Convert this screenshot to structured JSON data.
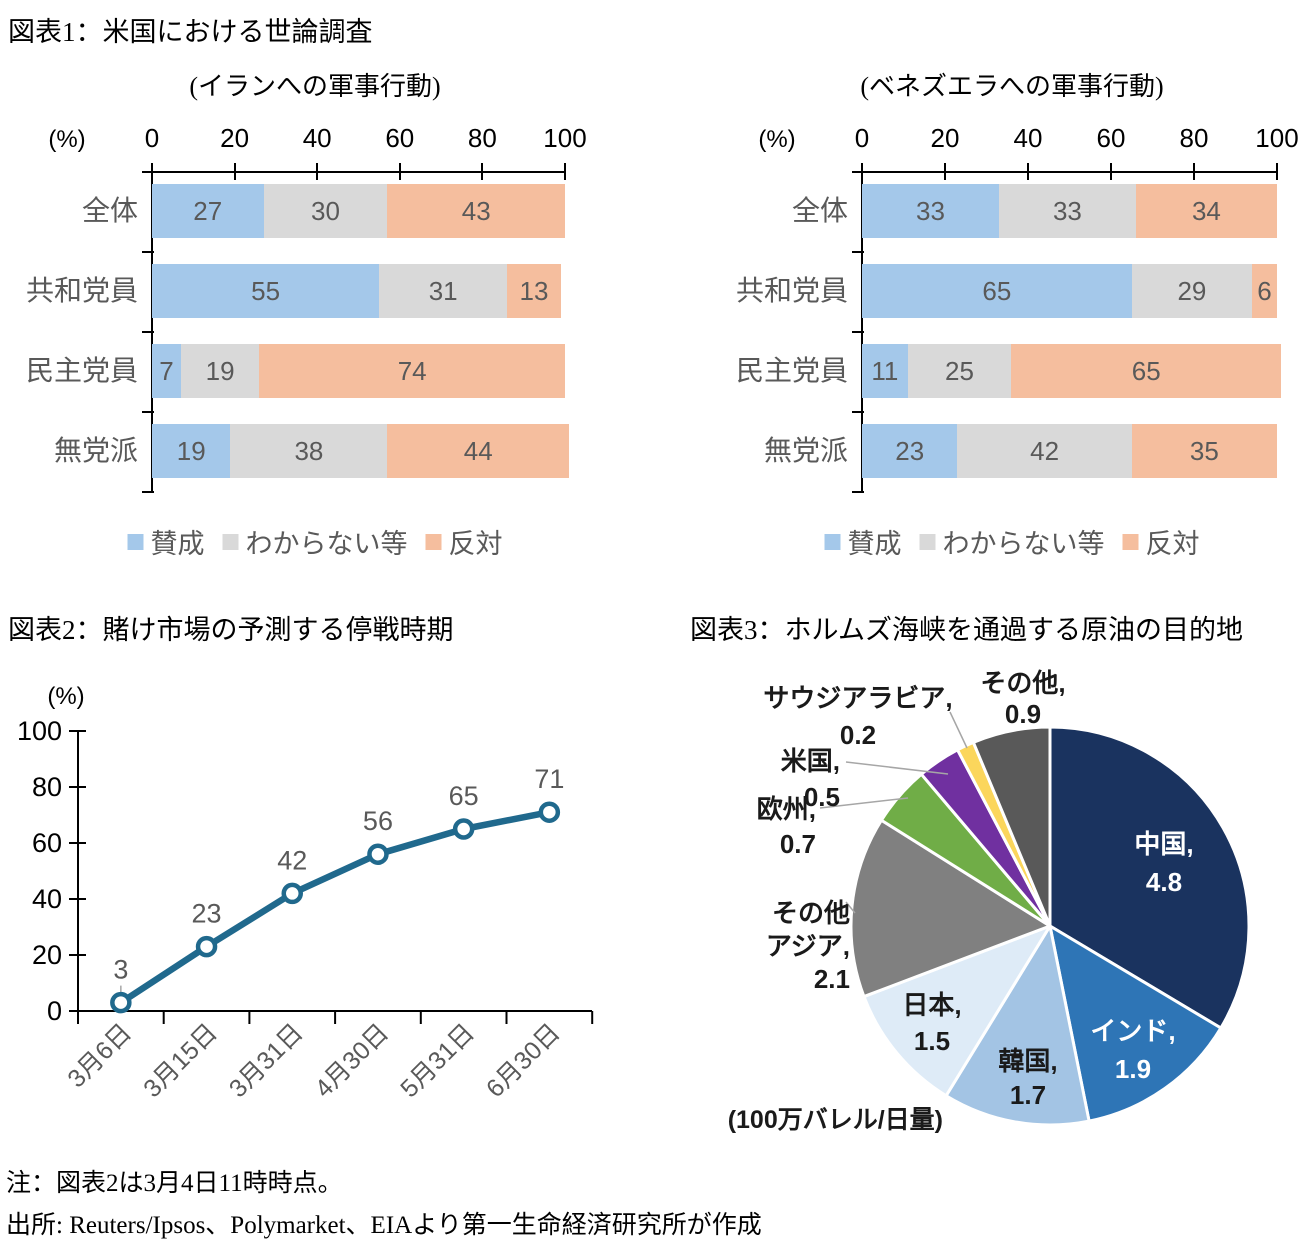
{
  "chart_data": [
    {
      "type": "bar",
      "group_title": "図表1：米国における世論調査",
      "subtitle": "(イランへの軍事行動)",
      "orientation": "horizontal",
      "stacked": true,
      "categories": [
        "全体",
        "共和党員",
        "民主党員",
        "無党派"
      ],
      "series": [
        {
          "name": "賛成",
          "color": "#A4C8EA",
          "values": [
            27,
            55,
            7,
            19
          ]
        },
        {
          "name": "わからない等",
          "color": "#D9D9D9",
          "values": [
            30,
            31,
            19,
            38
          ]
        },
        {
          "name": "反対",
          "color": "#F5BE9E",
          "values": [
            43,
            13,
            74,
            44
          ]
        }
      ],
      "xlabel": "(%)",
      "xlim": [
        0,
        100
      ],
      "x_ticks": [
        0,
        20,
        40,
        60,
        80,
        100
      ],
      "legend_position": "bottom",
      "label_color": "#595959"
    },
    {
      "type": "bar",
      "subtitle": "(ベネズエラへの軍事行動)",
      "orientation": "horizontal",
      "stacked": true,
      "categories": [
        "全体",
        "共和党員",
        "民主党員",
        "無党派"
      ],
      "series": [
        {
          "name": "賛成",
          "color": "#A4C8EA",
          "values": [
            33,
            65,
            11,
            23
          ]
        },
        {
          "name": "わからない等",
          "color": "#D9D9D9",
          "values": [
            33,
            29,
            25,
            42
          ]
        },
        {
          "name": "反対",
          "color": "#F5BE9E",
          "values": [
            34,
            6,
            65,
            35
          ]
        }
      ],
      "xlabel": "(%)",
      "xlim": [
        0,
        100
      ],
      "x_ticks": [
        0,
        20,
        40,
        60,
        80,
        100
      ],
      "legend_position": "bottom",
      "label_color": "#595959"
    },
    {
      "type": "line",
      "title": "図表2：賭け市場の予測する停戦時期",
      "ylabel": "(%)",
      "ylim": [
        0,
        100
      ],
      "y_ticks": [
        0,
        20,
        40,
        60,
        80,
        100
      ],
      "x": [
        "3月6日",
        "3月15日",
        "3月31日",
        "4月30日",
        "5月31日",
        "6月30日"
      ],
      "values": [
        3,
        23,
        42,
        56,
        65,
        71
      ],
      "line_color": "#20698D",
      "marker": "open-circle",
      "data_labels": true,
      "label_color": "#595959"
    },
    {
      "type": "pie",
      "title": "図表3：ホルムズ海峡を通過する原油の目的地",
      "unit_label": "(100万バレル/日量)",
      "start_angle_deg": 0,
      "direction": "clockwise",
      "slices": [
        {
          "label": "中国",
          "value": 4.8,
          "color": "#1A335F"
        },
        {
          "label": "インド",
          "value": 1.9,
          "color": "#2E75B6"
        },
        {
          "label": "韓国",
          "value": 1.7,
          "color": "#A3C4E4"
        },
        {
          "label": "日本",
          "value": 1.5,
          "color": "#DEEBF7"
        },
        {
          "label": "その他アジア",
          "value": 2.1,
          "color": "#808080"
        },
        {
          "label": "欧州",
          "value": 0.7,
          "color": "#70AD47"
        },
        {
          "label": "米国",
          "value": 0.5,
          "color": "#7030A0"
        },
        {
          "label": "サウジアラビア",
          "value": 0.2,
          "color": "#FBD65C"
        },
        {
          "label": "その他",
          "value": 0.9,
          "color": "#595959"
        }
      ]
    }
  ],
  "notes": {
    "note": "注：図表2は3月4日11時時点。",
    "source": "出所: Reuters/Ipsos、Polymarket、EIAより第一生命経済研究所が作成"
  }
}
